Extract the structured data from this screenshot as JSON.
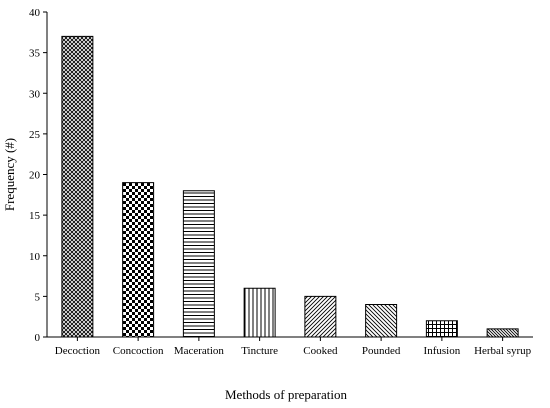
{
  "chart_data": {
    "type": "bar",
    "title": "",
    "xlabel": "Methods of preparation",
    "ylabel": "Frequency (#)",
    "categories": [
      "Decoction",
      "Concoction",
      "Maceration",
      "Tincture",
      "Cooked",
      "Pounded",
      "Infusion",
      "Herbal syrup"
    ],
    "values": [
      37,
      19,
      18,
      6,
      5,
      4,
      2,
      1
    ],
    "patterns": [
      "crosshatch-fine",
      "checker",
      "horizontal",
      "vertical",
      "diagonal-right",
      "diagonal-left",
      "grid",
      "diagonal-dense"
    ],
    "yticks": [
      0,
      5,
      10,
      15,
      20,
      25,
      30,
      35,
      40
    ],
    "ylim": [
      0,
      40
    ],
    "grid": false,
    "legend": "none",
    "colors": {
      "bar_fill": "#ffffff",
      "ink": "#000000"
    }
  }
}
